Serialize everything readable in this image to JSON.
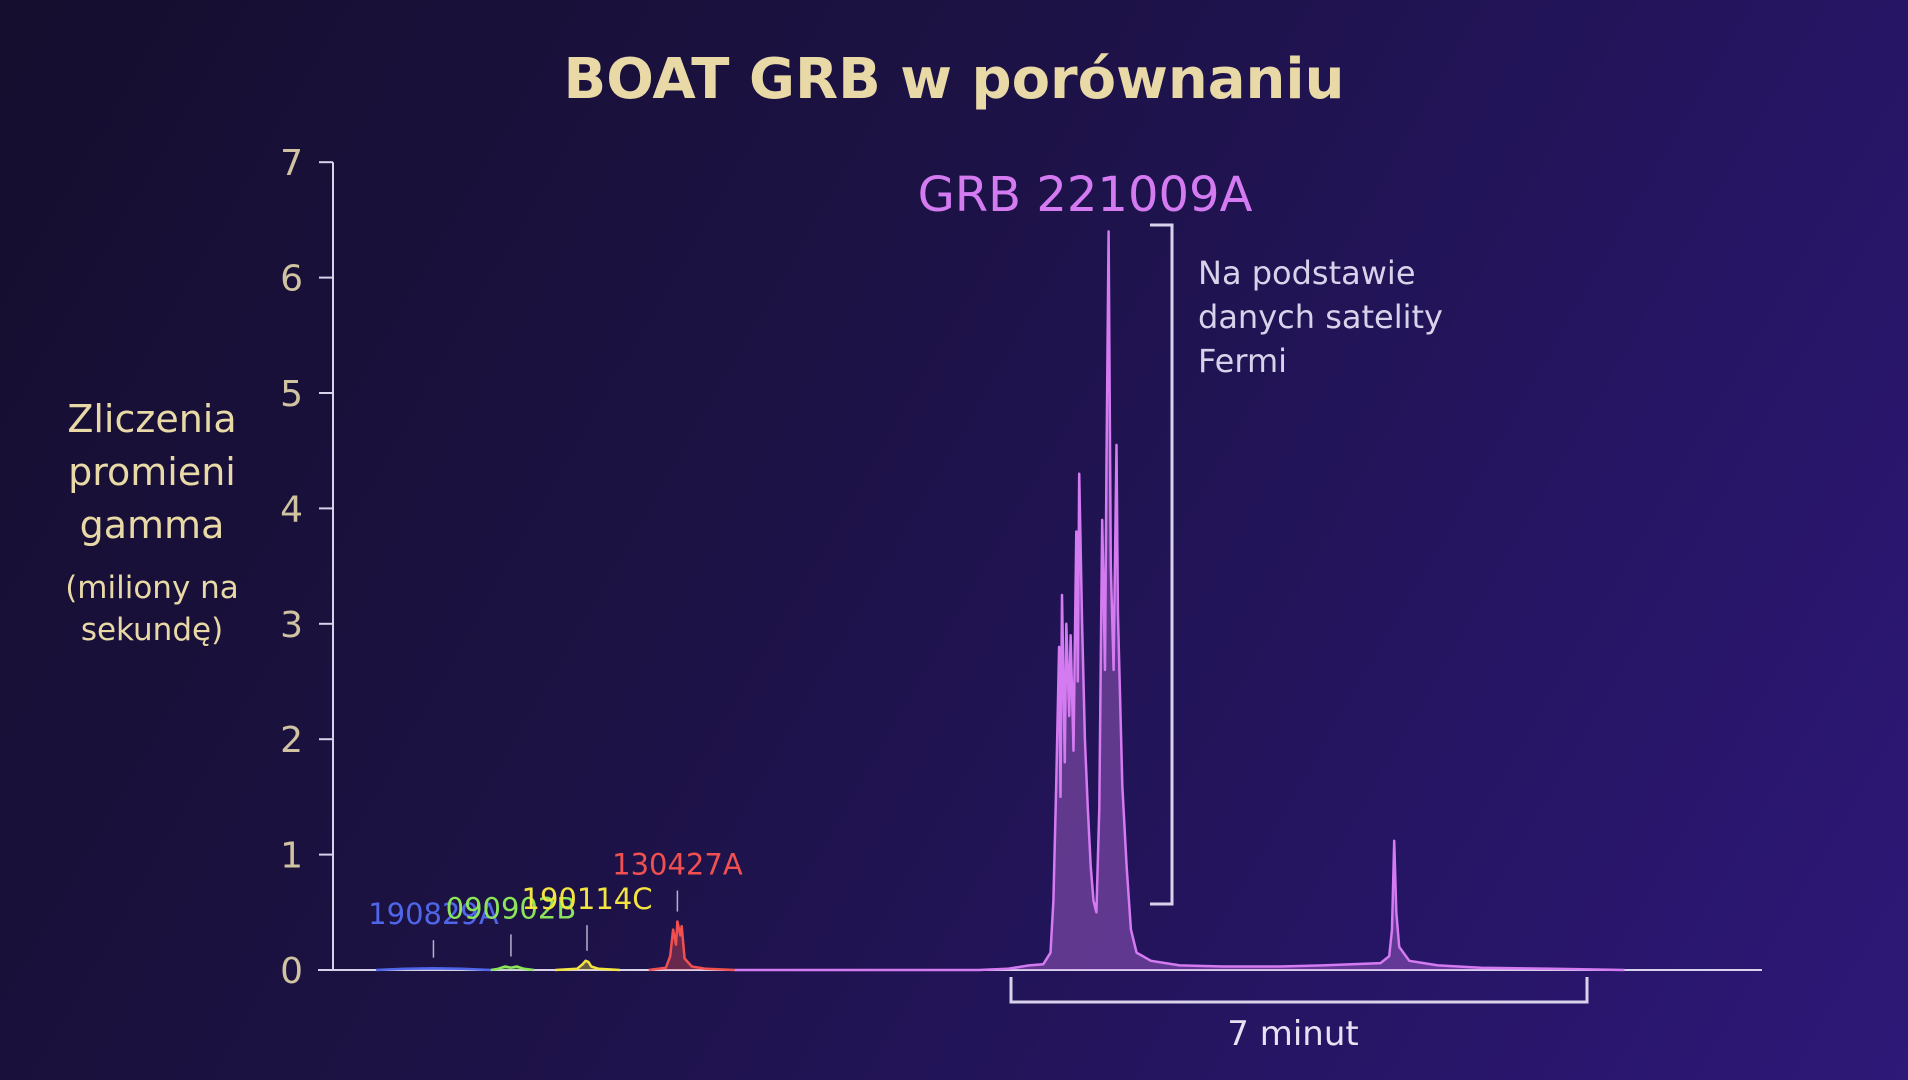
{
  "title": "BOAT GRB w porównaniu",
  "y_label": {
    "lines": [
      "Zliczenia",
      "promieni",
      "gamma"
    ],
    "unit_lines": [
      "(miliony na",
      "sekundę)"
    ]
  },
  "annotation": {
    "lines": [
      "Na podstawie",
      "danych satelity",
      "Fermi"
    ]
  },
  "duration_label": "7 minut",
  "colors": {
    "axis": "#d8d2ea",
    "grb_221009A": "#d57bf2",
    "grb_130427A": "#f0504f",
    "grb_190114C": "#f3e43f",
    "grb_090902B": "#8be45a",
    "grb_190829A": "#4f66e8"
  },
  "chart_data": {
    "type": "line",
    "title": "BOAT GRB w porównaniu",
    "ylabel": "Zliczenia promieni gamma (miliony na sekundę)",
    "xlabel": "",
    "ylim": [
      0,
      7
    ],
    "y_ticks": [
      "0",
      "1",
      "2",
      "3",
      "4",
      "5",
      "6",
      "7"
    ],
    "grid": false,
    "legend": "none",
    "series": [
      {
        "name": "190829A",
        "color": "#4f66e8",
        "label_anchor": {
          "x": 0.7,
          "y": 0.12
        },
        "points": [
          [
            0.3,
            0
          ],
          [
            0.5,
            0.01
          ],
          [
            0.7,
            0.015
          ],
          [
            0.9,
            0.01
          ],
          [
            1.1,
            0
          ]
        ]
      },
      {
        "name": "090902B",
        "color": "#8be45a",
        "label_anchor": {
          "x": 1.24,
          "y": 0.17
        },
        "points": [
          [
            1.1,
            0
          ],
          [
            1.15,
            0.01
          ],
          [
            1.2,
            0.03
          ],
          [
            1.24,
            0.02
          ],
          [
            1.28,
            0.03
          ],
          [
            1.33,
            0.01
          ],
          [
            1.4,
            0
          ]
        ]
      },
      {
        "name": "190114C",
        "color": "#f3e43f",
        "label_anchor": {
          "x": 1.77,
          "y": 0.25
        },
        "points": [
          [
            1.55,
            0
          ],
          [
            1.7,
            0.01
          ],
          [
            1.74,
            0.05
          ],
          [
            1.76,
            0.08
          ],
          [
            1.78,
            0.07
          ],
          [
            1.8,
            0.03
          ],
          [
            1.85,
            0.01
          ],
          [
            2.0,
            0
          ]
        ]
      },
      {
        "name": "130427A",
        "color": "#f0504f",
        "label_anchor": {
          "x": 2.4,
          "y": 0.55
        },
        "points": [
          [
            2.2,
            0
          ],
          [
            2.32,
            0.02
          ],
          [
            2.35,
            0.12
          ],
          [
            2.37,
            0.35
          ],
          [
            2.39,
            0.22
          ],
          [
            2.4,
            0.42
          ],
          [
            2.42,
            0.3
          ],
          [
            2.43,
            0.38
          ],
          [
            2.45,
            0.1
          ],
          [
            2.5,
            0.03
          ],
          [
            2.6,
            0.01
          ],
          [
            2.8,
            0
          ]
        ]
      },
      {
        "name": "GRB 221009A",
        "color": "#d57bf2",
        "points": [
          [
            2.8,
            0
          ],
          [
            4.5,
            0
          ],
          [
            4.7,
            0.01
          ],
          [
            4.85,
            0.04
          ],
          [
            4.95,
            0.05
          ],
          [
            5.0,
            0.15
          ],
          [
            5.02,
            0.6
          ],
          [
            5.04,
            1.6
          ],
          [
            5.06,
            2.8
          ],
          [
            5.07,
            1.5
          ],
          [
            5.08,
            3.25
          ],
          [
            5.1,
            1.8
          ],
          [
            5.11,
            3.0
          ],
          [
            5.13,
            2.2
          ],
          [
            5.14,
            2.9
          ],
          [
            5.16,
            1.9
          ],
          [
            5.18,
            3.8
          ],
          [
            5.19,
            2.5
          ],
          [
            5.2,
            4.3
          ],
          [
            5.22,
            3.0
          ],
          [
            5.24,
            2.0
          ],
          [
            5.26,
            1.4
          ],
          [
            5.28,
            0.9
          ],
          [
            5.3,
            0.6
          ],
          [
            5.32,
            0.5
          ],
          [
            5.34,
            1.4
          ],
          [
            5.36,
            3.9
          ],
          [
            5.38,
            2.6
          ],
          [
            5.39,
            4.4
          ],
          [
            5.405,
            6.4
          ],
          [
            5.42,
            3.5
          ],
          [
            5.44,
            2.6
          ],
          [
            5.46,
            4.55
          ],
          [
            5.47,
            3.1
          ],
          [
            5.5,
            1.6
          ],
          [
            5.53,
            0.9
          ],
          [
            5.56,
            0.35
          ],
          [
            5.6,
            0.15
          ],
          [
            5.7,
            0.08
          ],
          [
            5.9,
            0.04
          ],
          [
            6.2,
            0.03
          ],
          [
            6.6,
            0.03
          ],
          [
            6.9,
            0.04
          ],
          [
            7.1,
            0.05
          ],
          [
            7.3,
            0.06
          ],
          [
            7.36,
            0.12
          ],
          [
            7.38,
            0.35
          ],
          [
            7.395,
            1.12
          ],
          [
            7.41,
            0.5
          ],
          [
            7.43,
            0.2
          ],
          [
            7.5,
            0.08
          ],
          [
            7.7,
            0.04
          ],
          [
            8.0,
            0.02
          ],
          [
            8.5,
            0.01
          ],
          [
            9.0,
            0
          ]
        ]
      }
    ],
    "annotations": [
      {
        "text": "GRB 221009A",
        "target": "peak 6.4"
      },
      {
        "text": "Na podstawie danych satelity Fermi"
      },
      {
        "text": "7 minut",
        "x_range": [
          4.5,
          7.5
        ]
      }
    ]
  }
}
